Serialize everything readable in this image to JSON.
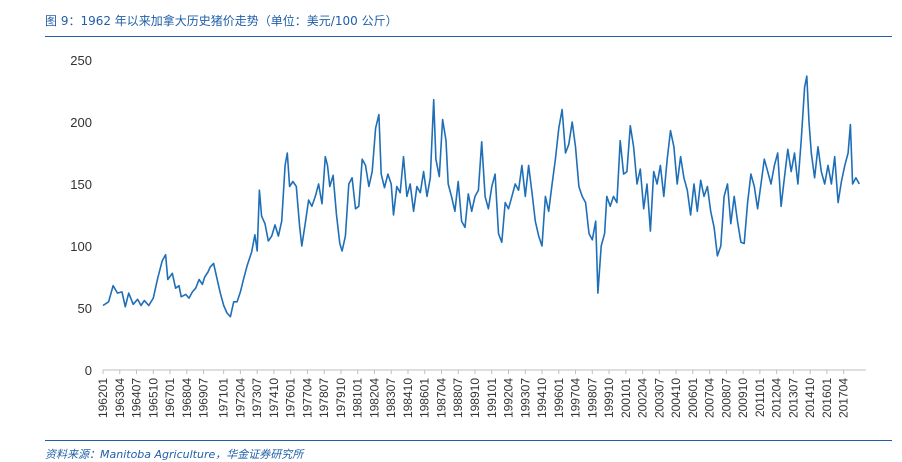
{
  "figure": {
    "title": "图 9：1962 年以来加拿大历史猪价走势（单位：美元/100 公斤）",
    "source": "资料来源：Manitoba Agriculture，华金证券研究所"
  },
  "chart_data": {
    "type": "line",
    "title": "图 9：1962 年以来加拿大历史猪价走势（单位：美元/100 公斤）",
    "xlabel": "",
    "ylabel": "",
    "ylim": [
      0,
      250
    ],
    "yticks": [
      0,
      50,
      100,
      150,
      200,
      250
    ],
    "grid": false,
    "legend": "none",
    "line_color": "#1f6fb8",
    "x_start": "196201",
    "x_end": "201812",
    "xtick_labels": [
      "196201",
      "196304",
      "196407",
      "196510",
      "196701",
      "196804",
      "196907",
      "197101",
      "197204",
      "197307",
      "197410",
      "197601",
      "197704",
      "197807",
      "197910",
      "198101",
      "198204",
      "198307",
      "198410",
      "198601",
      "198704",
      "198807",
      "198910",
      "199101",
      "199204",
      "199307",
      "199410",
      "199601",
      "199704",
      "199807",
      "199910",
      "200101",
      "200204",
      "200307",
      "200410",
      "200601",
      "200704",
      "200807",
      "200910",
      "201101",
      "201204",
      "201307",
      "201410",
      "201601",
      "201704"
    ],
    "series": [
      {
        "points": [
          [
            "196201",
            52
          ],
          [
            "196206",
            55
          ],
          [
            "196210",
            68
          ],
          [
            "196302",
            62
          ],
          [
            "196306",
            63
          ],
          [
            "196309",
            51
          ],
          [
            "196312",
            62
          ],
          [
            "196404",
            53
          ],
          [
            "196408",
            57
          ],
          [
            "196411",
            52
          ],
          [
            "196502",
            56
          ],
          [
            "196506",
            52
          ],
          [
            "196510",
            58
          ],
          [
            "196602",
            74
          ],
          [
            "196606",
            88
          ],
          [
            "196609",
            93
          ],
          [
            "196611",
            73
          ],
          [
            "196703",
            78
          ],
          [
            "196706",
            66
          ],
          [
            "196709",
            68
          ],
          [
            "196711",
            59
          ],
          [
            "196803",
            61
          ],
          [
            "196806",
            58
          ],
          [
            "196809",
            63
          ],
          [
            "196812",
            66
          ],
          [
            "196903",
            73
          ],
          [
            "196906",
            69
          ],
          [
            "196908",
            75
          ],
          [
            "196911",
            79
          ],
          [
            "197001",
            83
          ],
          [
            "197004",
            86
          ],
          [
            "197007",
            74
          ],
          [
            "197010",
            62
          ],
          [
            "197101",
            52
          ],
          [
            "197104",
            46
          ],
          [
            "197107",
            43
          ],
          [
            "197110",
            55
          ],
          [
            "197201",
            55
          ],
          [
            "197204",
            63
          ],
          [
            "197207",
            74
          ],
          [
            "197210",
            84
          ],
          [
            "197302",
            95
          ],
          [
            "197305",
            109
          ],
          [
            "197307",
            96
          ],
          [
            "197309",
            145
          ],
          [
            "197311",
            124
          ],
          [
            "197402",
            118
          ],
          [
            "197405",
            104
          ],
          [
            "197408",
            108
          ],
          [
            "197411",
            117
          ],
          [
            "197502",
            108
          ],
          [
            "197505",
            120
          ],
          [
            "197508",
            165
          ],
          [
            "197510",
            175
          ],
          [
            "197512",
            148
          ],
          [
            "197603",
            152
          ],
          [
            "197606",
            148
          ],
          [
            "197609",
            116
          ],
          [
            "197611",
            100
          ],
          [
            "197702",
            118
          ],
          [
            "197705",
            137
          ],
          [
            "197708",
            132
          ],
          [
            "197711",
            140
          ],
          [
            "197802",
            150
          ],
          [
            "197805",
            134
          ],
          [
            "197808",
            172
          ],
          [
            "197810",
            165
          ],
          [
            "197812",
            148
          ],
          [
            "197903",
            157
          ],
          [
            "197906",
            125
          ],
          [
            "197909",
            102
          ],
          [
            "197911",
            96
          ],
          [
            "198002",
            108
          ],
          [
            "198005",
            150
          ],
          [
            "198008",
            155
          ],
          [
            "198011",
            130
          ],
          [
            "198102",
            132
          ],
          [
            "198105",
            170
          ],
          [
            "198108",
            165
          ],
          [
            "198111",
            148
          ],
          [
            "198202",
            160
          ],
          [
            "198205",
            195
          ],
          [
            "198208",
            206
          ],
          [
            "198210",
            158
          ],
          [
            "198301",
            147
          ],
          [
            "198304",
            158
          ],
          [
            "198307",
            150
          ],
          [
            "198309",
            125
          ],
          [
            "198312",
            148
          ],
          [
            "198403",
            143
          ],
          [
            "198406",
            172
          ],
          [
            "198409",
            140
          ],
          [
            "198412",
            150
          ],
          [
            "198503",
            128
          ],
          [
            "198506",
            148
          ],
          [
            "198509",
            143
          ],
          [
            "198512",
            160
          ],
          [
            "198603",
            140
          ],
          [
            "198606",
            155
          ],
          [
            "198609",
            218
          ],
          [
            "198611",
            170
          ],
          [
            "198702",
            156
          ],
          [
            "198705",
            202
          ],
          [
            "198708",
            185
          ],
          [
            "198710",
            150
          ],
          [
            "198801",
            140
          ],
          [
            "198804",
            128
          ],
          [
            "198807",
            152
          ],
          [
            "198810",
            120
          ],
          [
            "198901",
            115
          ],
          [
            "198904",
            142
          ],
          [
            "198907",
            128
          ],
          [
            "198910",
            140
          ],
          [
            "199001",
            145
          ],
          [
            "199004",
            184
          ],
          [
            "199007",
            140
          ],
          [
            "199010",
            130
          ],
          [
            "199101",
            148
          ],
          [
            "199104",
            158
          ],
          [
            "199107",
            110
          ],
          [
            "199110",
            103
          ],
          [
            "199201",
            135
          ],
          [
            "199204",
            130
          ],
          [
            "199207",
            140
          ],
          [
            "199210",
            150
          ],
          [
            "199301",
            145
          ],
          [
            "199304",
            165
          ],
          [
            "199307",
            140
          ],
          [
            "199310",
            165
          ],
          [
            "199401",
            143
          ],
          [
            "199404",
            120
          ],
          [
            "199407",
            108
          ],
          [
            "199410",
            100
          ],
          [
            "199501",
            140
          ],
          [
            "199504",
            128
          ],
          [
            "199507",
            150
          ],
          [
            "199510",
            170
          ],
          [
            "199601",
            195
          ],
          [
            "199604",
            210
          ],
          [
            "199607",
            175
          ],
          [
            "199610",
            182
          ],
          [
            "199701",
            200
          ],
          [
            "199704",
            180
          ],
          [
            "199707",
            148
          ],
          [
            "199710",
            140
          ],
          [
            "199801",
            135
          ],
          [
            "199804",
            110
          ],
          [
            "199807",
            105
          ],
          [
            "199810",
            120
          ],
          [
            "199812",
            62
          ],
          [
            "199903",
            100
          ],
          [
            "199906",
            110
          ],
          [
            "199908",
            140
          ],
          [
            "199911",
            132
          ],
          [
            "200002",
            140
          ],
          [
            "200005",
            135
          ],
          [
            "200008",
            185
          ],
          [
            "200011",
            158
          ],
          [
            "200102",
            160
          ],
          [
            "200105",
            197
          ],
          [
            "200108",
            180
          ],
          [
            "200111",
            150
          ],
          [
            "200202",
            162
          ],
          [
            "200205",
            130
          ],
          [
            "200208",
            150
          ],
          [
            "200211",
            112
          ],
          [
            "200302",
            160
          ],
          [
            "200305",
            150
          ],
          [
            "200308",
            165
          ],
          [
            "200311",
            140
          ],
          [
            "200402",
            170
          ],
          [
            "200405",
            193
          ],
          [
            "200408",
            180
          ],
          [
            "200411",
            150
          ],
          [
            "200502",
            172
          ],
          [
            "200505",
            155
          ],
          [
            "200508",
            145
          ],
          [
            "200511",
            125
          ],
          [
            "200602",
            150
          ],
          [
            "200605",
            128
          ],
          [
            "200608",
            153
          ],
          [
            "200611",
            140
          ],
          [
            "200702",
            148
          ],
          [
            "200705",
            128
          ],
          [
            "200708",
            115
          ],
          [
            "200711",
            92
          ],
          [
            "200802",
            100
          ],
          [
            "200805",
            140
          ],
          [
            "200808",
            150
          ],
          [
            "200811",
            118
          ],
          [
            "200902",
            140
          ],
          [
            "200905",
            120
          ],
          [
            "200908",
            103
          ],
          [
            "200911",
            102
          ],
          [
            "201002",
            135
          ],
          [
            "201005",
            158
          ],
          [
            "201008",
            148
          ],
          [
            "201011",
            130
          ],
          [
            "201102",
            150
          ],
          [
            "201105",
            170
          ],
          [
            "201108",
            160
          ],
          [
            "201111",
            150
          ],
          [
            "201202",
            165
          ],
          [
            "201205",
            175
          ],
          [
            "201208",
            132
          ],
          [
            "201211",
            155
          ],
          [
            "201302",
            178
          ],
          [
            "201305",
            160
          ],
          [
            "201308",
            175
          ],
          [
            "201311",
            150
          ],
          [
            "201402",
            185
          ],
          [
            "201405",
            228
          ],
          [
            "201407",
            237
          ],
          [
            "201409",
            200
          ],
          [
            "201411",
            175
          ],
          [
            "201502",
            155
          ],
          [
            "201505",
            180
          ],
          [
            "201508",
            160
          ],
          [
            "201511",
            150
          ],
          [
            "201602",
            165
          ],
          [
            "201605",
            150
          ],
          [
            "201608",
            172
          ],
          [
            "201611",
            135
          ],
          [
            "201702",
            152
          ],
          [
            "201705",
            165
          ],
          [
            "201708",
            175
          ],
          [
            "201710",
            198
          ],
          [
            "201712",
            150
          ],
          [
            "201803",
            155
          ],
          [
            "201806",
            150
          ]
        ]
      }
    ]
  }
}
